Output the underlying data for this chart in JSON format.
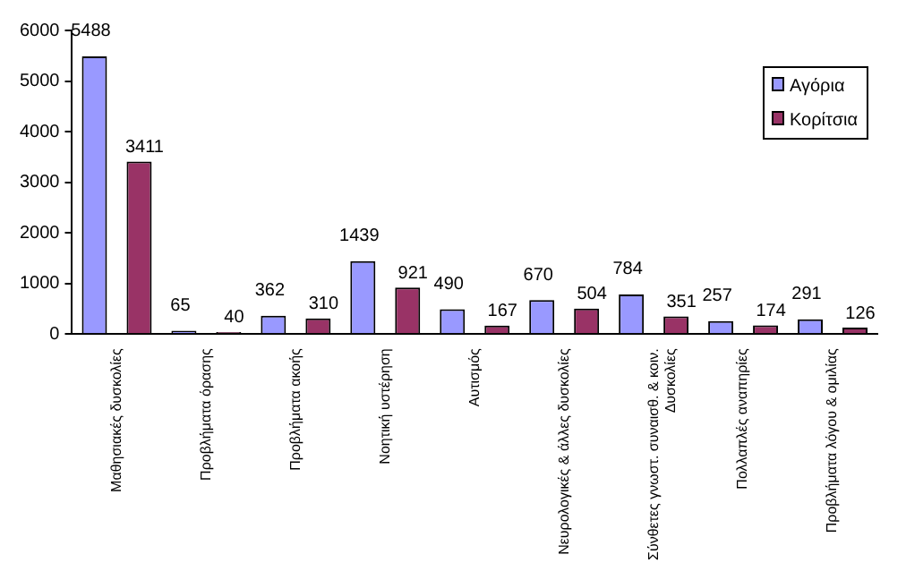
{
  "chart_data": {
    "type": "bar",
    "categories": [
      "Μαθησιακές δυσκολίες",
      "Προβλήματα όρασης",
      "Προβλήματα ακοής",
      "Νοητική υστέρηση",
      "Αυτισμός",
      "Νευρολογικές & άλλες δυσκολίες",
      "Σύνθετες γνωστ. συναισθ. & κοιν.\nΔυσκολίες",
      "Πολλαπλές αναπηρίες",
      "Προβλήματα λόγου & ομιλίας"
    ],
    "series": [
      {
        "name": "Αγόρια",
        "color": "#9999ff",
        "values": [
          5488,
          65,
          362,
          1439,
          490,
          670,
          784,
          257,
          291
        ]
      },
      {
        "name": "Κορίτσια",
        "color": "#993366",
        "values": [
          3411,
          40,
          310,
          921,
          167,
          504,
          351,
          174,
          126
        ]
      }
    ],
    "ylim": [
      0,
      6000
    ],
    "yticks": [
      0,
      1000,
      2000,
      3000,
      4000,
      5000,
      6000
    ],
    "data_labels": true,
    "legend": "top right",
    "grid": false
  }
}
